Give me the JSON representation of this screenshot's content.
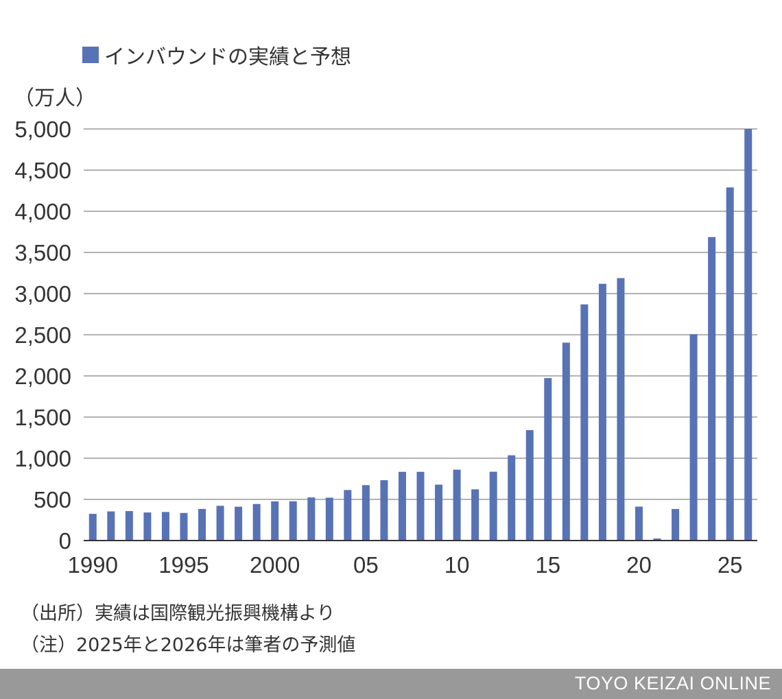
{
  "colors": {
    "bar": "#5872B6",
    "grid": "#999999",
    "axis": "#333333",
    "text": "#333333",
    "footer_bg": "#999999",
    "footer_text": "#ffffff"
  },
  "chart_data": {
    "type": "bar",
    "legend_label": "インバウンドの実績と予想",
    "unit_label": "（万人）",
    "categories": [
      1990,
      1991,
      1992,
      1993,
      1994,
      1995,
      1996,
      1997,
      1998,
      1999,
      2000,
      2001,
      2002,
      2003,
      2004,
      2005,
      2006,
      2007,
      2008,
      2009,
      2010,
      2011,
      2012,
      2013,
      2014,
      2015,
      2016,
      2017,
      2018,
      2019,
      2020,
      2021,
      2022,
      2023,
      2024,
      2025,
      2026
    ],
    "values": [
      324,
      354,
      358,
      341,
      347,
      335,
      384,
      422,
      411,
      444,
      476,
      477,
      524,
      521,
      614,
      673,
      733,
      835,
      835,
      679,
      861,
      622,
      836,
      1036,
      1341,
      1974,
      2404,
      2869,
      3119,
      3188,
      412,
      25,
      383,
      2507,
      3687,
      4290,
      5000
    ],
    "x_tick_labels": [
      "1990",
      "1995",
      "2000",
      "05",
      "10",
      "15",
      "20",
      "25"
    ],
    "x_tick_positions": [
      1990,
      1995,
      2000,
      2005,
      2010,
      2015,
      2020,
      2025
    ],
    "y_tick_labels": [
      "0",
      "500",
      "1,000",
      "1,500",
      "2,000",
      "2,500",
      "3,000",
      "3,500",
      "4,000",
      "4,500",
      "5,000"
    ],
    "y_tick_values": [
      0,
      500,
      1000,
      1500,
      2000,
      2500,
      3000,
      3500,
      4000,
      4500,
      5000
    ],
    "ylim": [
      0,
      5000
    ],
    "grid": true,
    "legend_position": "top-left"
  },
  "notes": {
    "source": "（出所）実績は国際観光振興機構より",
    "remark": "（注）2025年と2026年は筆者の予測値"
  },
  "footer": {
    "brand": "TOYO KEIZAI ONLINE"
  }
}
